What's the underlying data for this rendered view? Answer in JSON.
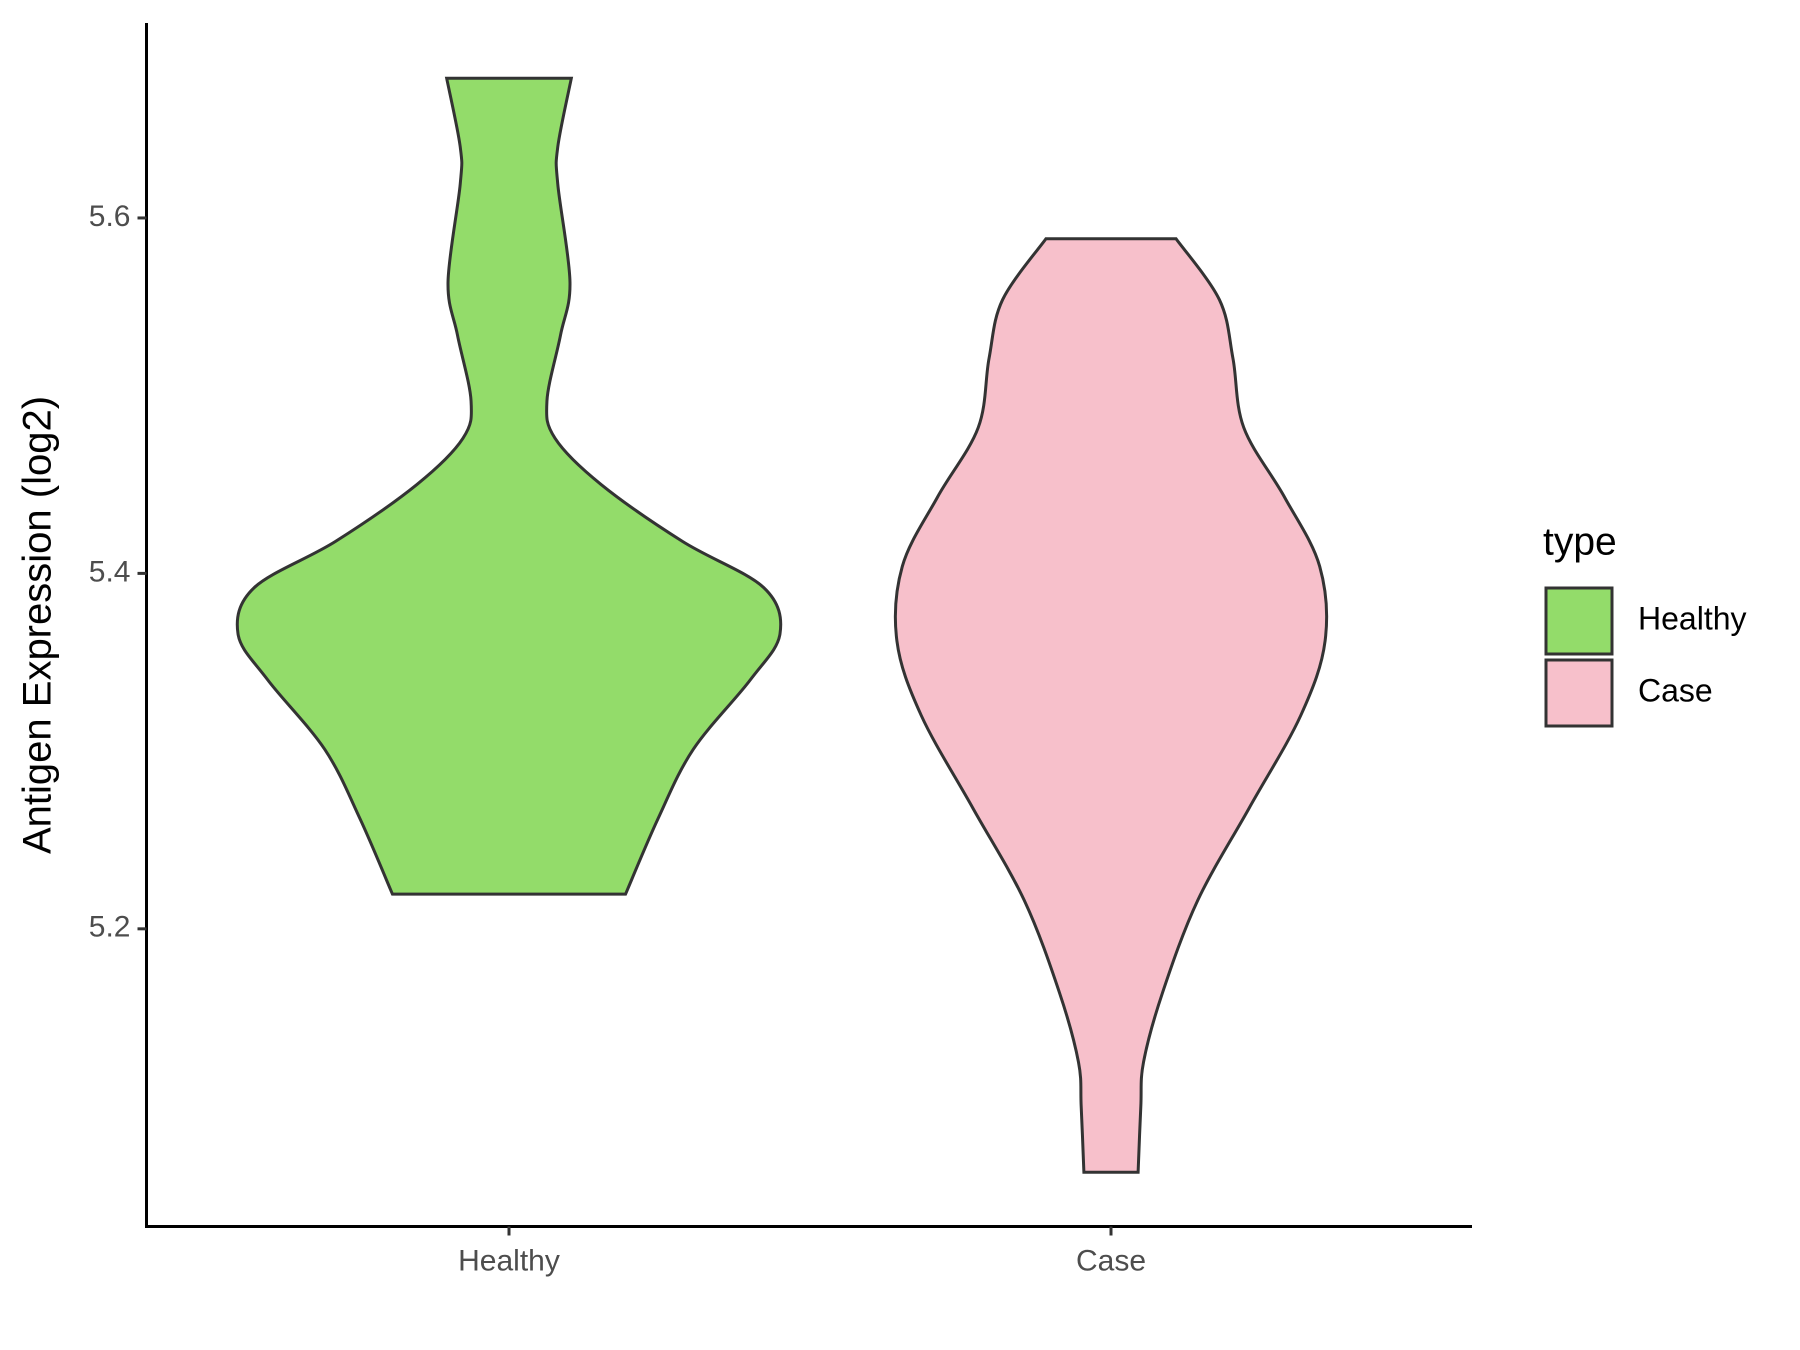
{
  "chart_data": {
    "type": "violin",
    "y_label": "Antigen Expression (log2)",
    "categories": [
      "Healthy",
      "Case"
    ],
    "ylim": [
      5.0325,
      5.7097
    ],
    "yticks": [
      5.2,
      5.4,
      5.6
    ],
    "legend_title": "type",
    "legend_position": "right",
    "series": [
      {
        "name": "Healthy",
        "color": "#93dc6a",
        "y": [
          5.6786,
          5.64,
          5.619,
          5.564,
          5.534,
          5.497,
          5.476,
          5.45,
          5.418,
          5.392,
          5.366,
          5.34,
          5.301,
          5.262,
          5.2195
        ],
        "width": [
          0.23,
          0.18,
          0.18,
          0.225,
          0.19,
          0.14,
          0.17,
          0.34,
          0.64,
          0.94,
          1.0,
          0.89,
          0.68,
          0.55,
          0.43
        ]
      },
      {
        "name": "Case",
        "color": "#f7c0cb",
        "y": [
          5.5883,
          5.554,
          5.521,
          5.482,
          5.443,
          5.404,
          5.362,
          5.32,
          5.268,
          5.216,
          5.164,
          5.125,
          5.1,
          5.063
        ],
        "width": [
          0.24,
          0.4,
          0.45,
          0.49,
          0.64,
          0.77,
          0.79,
          0.7,
          0.51,
          0.32,
          0.19,
          0.12,
          0.11,
          0.1
        ]
      }
    ]
  }
}
